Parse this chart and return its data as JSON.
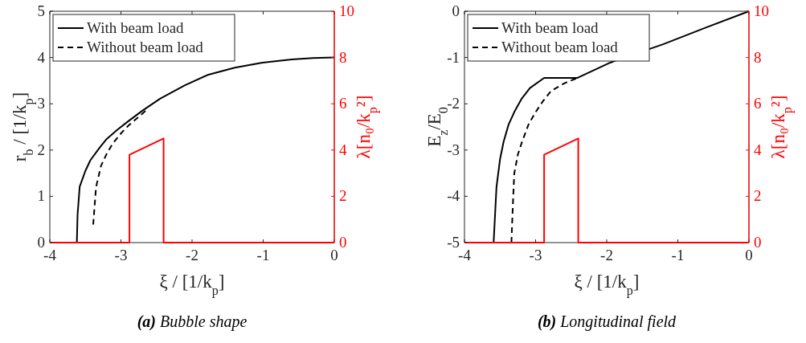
{
  "chart_data": [
    {
      "type": "line",
      "title": "(a) Bubble shape",
      "xlabel": "ξ / [1/k$_{p}$]",
      "ylabel": "r$_{b}$ / [1/k$_{p}$]",
      "y2label": "λ[n₀/k$_{p}$²]",
      "xlim": [
        -4,
        0
      ],
      "xticks": [
        -4,
        -3,
        -2,
        -1,
        0
      ],
      "ylim": [
        0,
        5
      ],
      "yticks": [
        0,
        1,
        2,
        3,
        4,
        5
      ],
      "y2lim": [
        0,
        10
      ],
      "y2ticks": [
        0,
        2,
        4,
        6,
        8,
        10
      ],
      "legend": "top left",
      "grid": false,
      "series": [
        {
          "name": "With beam load",
          "color": "#000000",
          "line_style": "solid",
          "x": [
            -3.62,
            -3.61,
            -3.58,
            -3.5,
            -3.43,
            -3.3,
            -3.2,
            -3.05,
            -2.9,
            -2.7,
            -2.45,
            -2.1,
            -1.77,
            -1.4,
            -1.01,
            -0.6,
            -0.3,
            0
          ],
          "values": [
            0,
            0.6,
            1.21,
            1.55,
            1.78,
            2.05,
            2.24,
            2.44,
            2.62,
            2.85,
            3.11,
            3.4,
            3.63,
            3.78,
            3.89,
            3.96,
            3.99,
            4
          ]
        },
        {
          "name": "Without beam load",
          "color": "#000000",
          "line_style": "dashed",
          "x": [
            -3.39,
            -3.37,
            -3.35,
            -3.28,
            -3.2,
            -3.12,
            -3.0,
            -2.9,
            -2.75,
            -2.63
          ],
          "values": [
            0.39,
            0.8,
            1.2,
            1.66,
            1.92,
            2.13,
            2.36,
            2.52,
            2.72,
            2.88
          ]
        },
        {
          "color": "#ff0000",
          "line_style": "solid",
          "axis": "y2",
          "x": [
            -4,
            -2.88,
            -2.88,
            -2.4,
            -2.4,
            0
          ],
          "values": [
            0,
            0,
            3.8,
            4.5,
            0,
            0
          ]
        }
      ]
    },
    {
      "type": "line",
      "title": "(b) Longitudinal field",
      "xlabel": "ξ / [1/k$_{p}$]",
      "ylabel": "E$_{z}$/E$_{0}$",
      "y2label": "λ[n₀/k$_{p}$²]",
      "xlim": [
        -4,
        0
      ],
      "xticks": [
        -4,
        -3,
        -2,
        -1,
        0
      ],
      "ylim": [
        -5,
        0
      ],
      "yticks": [
        -5,
        -4,
        -3,
        -2,
        -1,
        0
      ],
      "y2lim": [
        0,
        10
      ],
      "y2ticks": [
        0,
        2,
        4,
        6,
        8,
        10
      ],
      "legend": "top left",
      "grid": false,
      "series": [
        {
          "name": "With beam load",
          "color": "#000000",
          "line_style": "solid",
          "x": [
            -3.59,
            -3.57,
            -3.55,
            -3.5,
            -3.45,
            -3.38,
            -3.3,
            -3.2,
            -3.08,
            -2.88,
            -2.41,
            -1.95,
            -1.2,
            -0.6,
            0
          ],
          "values": [
            -5,
            -4.4,
            -3.8,
            -3.2,
            -2.82,
            -2.45,
            -2.18,
            -1.9,
            -1.66,
            -1.44,
            -1.44,
            -1.11,
            -0.71,
            -0.35,
            0
          ]
        },
        {
          "name": "Without beam load",
          "color": "#000000",
          "line_style": "dashed",
          "x": [
            -3.34,
            -3.32,
            -3.3,
            -3.25,
            -3.19,
            -3.1,
            -3.0,
            -2.9,
            -2.78,
            -2.6,
            -2.41
          ],
          "values": [
            -5,
            -4.2,
            -3.51,
            -3.1,
            -2.82,
            -2.45,
            -2.18,
            -1.95,
            -1.72,
            -1.56,
            -1.44
          ]
        },
        {
          "color": "#ff0000",
          "line_style": "solid",
          "axis": "y2",
          "x": [
            -4,
            -2.88,
            -2.88,
            -2.4,
            -2.4,
            0
          ],
          "values": [
            0,
            0,
            3.8,
            4.5,
            0,
            0
          ]
        }
      ]
    }
  ]
}
